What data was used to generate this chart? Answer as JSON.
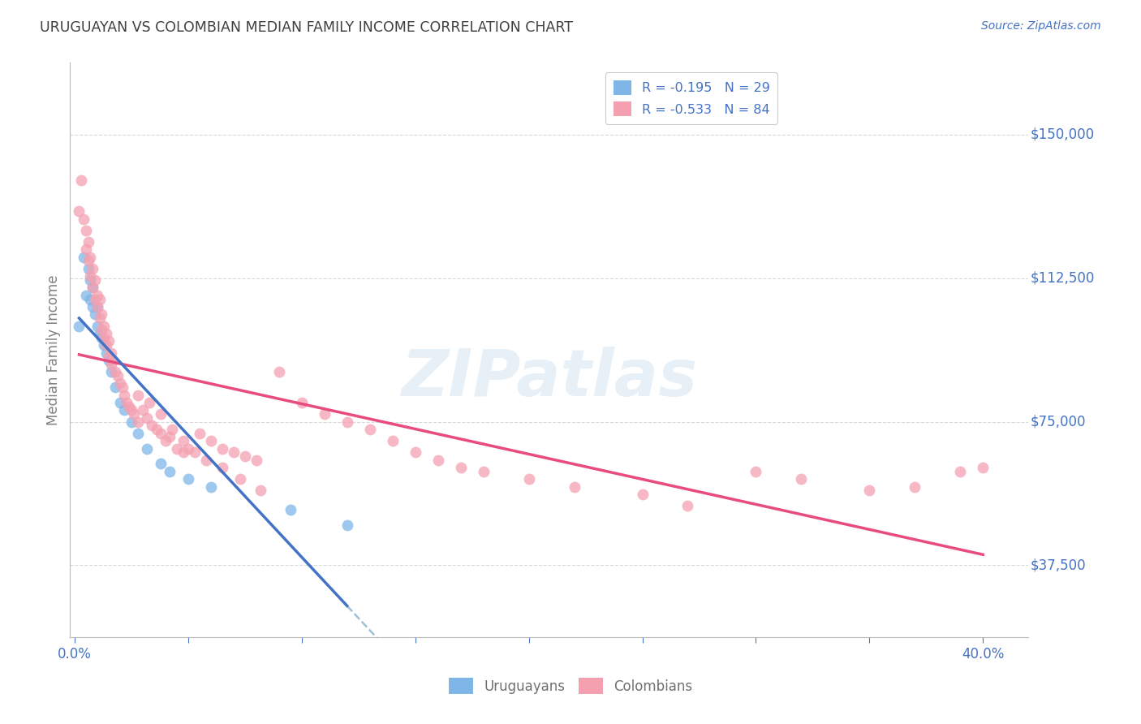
{
  "title": "URUGUAYAN VS COLOMBIAN MEDIAN FAMILY INCOME CORRELATION CHART",
  "source": "Source: ZipAtlas.com",
  "ylabel": "Median Family Income",
  "ytick_labels": [
    "$37,500",
    "$75,000",
    "$112,500",
    "$150,000"
  ],
  "ytick_values": [
    37500,
    75000,
    112500,
    150000
  ],
  "ylim": [
    18750,
    168750
  ],
  "xlim": [
    -0.002,
    0.42
  ],
  "watermark": "ZIPatlas",
  "legend_line1": "R = -0.195   N = 29",
  "legend_line2": "R = -0.533   N = 84",
  "legend_label1": "Uruguayans",
  "legend_label2": "Colombians",
  "color_uruguayan": "#7EB6E8",
  "color_colombian": "#F4A0B0",
  "color_trend_uruguayan": "#4472C4",
  "color_trend_colombian": "#E84C7D",
  "color_trend_dashed": "#A0C0D8",
  "color_axis_labels": "#4472C4",
  "color_title": "#404040",
  "background_color": "#FFFFFF",
  "grid_color": "#D8D8D8",
  "uruguayan_x": [
    0.002,
    0.004,
    0.005,
    0.006,
    0.007,
    0.007,
    0.008,
    0.008,
    0.009,
    0.01,
    0.01,
    0.011,
    0.012,
    0.013,
    0.014,
    0.015,
    0.016,
    0.018,
    0.02,
    0.022,
    0.025,
    0.028,
    0.032,
    0.038,
    0.042,
    0.05,
    0.06,
    0.095,
    0.12
  ],
  "uruguayan_y": [
    100000,
    118000,
    108000,
    115000,
    112000,
    107000,
    105000,
    110000,
    103000,
    100000,
    105000,
    98000,
    97000,
    95000,
    93000,
    91000,
    88000,
    84000,
    80000,
    78000,
    75000,
    72000,
    68000,
    64000,
    62000,
    60000,
    58000,
    52000,
    48000
  ],
  "colombian_x": [
    0.002,
    0.003,
    0.004,
    0.005,
    0.005,
    0.006,
    0.006,
    0.007,
    0.007,
    0.008,
    0.008,
    0.009,
    0.009,
    0.01,
    0.01,
    0.011,
    0.011,
    0.012,
    0.012,
    0.013,
    0.013,
    0.014,
    0.014,
    0.015,
    0.015,
    0.016,
    0.016,
    0.017,
    0.018,
    0.019,
    0.02,
    0.021,
    0.022,
    0.023,
    0.024,
    0.025,
    0.026,
    0.028,
    0.03,
    0.032,
    0.034,
    0.036,
    0.038,
    0.04,
    0.042,
    0.045,
    0.048,
    0.05,
    0.055,
    0.06,
    0.065,
    0.07,
    0.075,
    0.08,
    0.09,
    0.1,
    0.11,
    0.12,
    0.13,
    0.14,
    0.15,
    0.16,
    0.17,
    0.18,
    0.2,
    0.22,
    0.25,
    0.27,
    0.3,
    0.32,
    0.35,
    0.37,
    0.39,
    0.4,
    0.028,
    0.033,
    0.038,
    0.043,
    0.048,
    0.053,
    0.058,
    0.065,
    0.073,
    0.082
  ],
  "colombian_y": [
    130000,
    138000,
    128000,
    125000,
    120000,
    122000,
    117000,
    118000,
    113000,
    115000,
    110000,
    112000,
    107000,
    108000,
    105000,
    107000,
    102000,
    103000,
    99000,
    100000,
    97000,
    98000,
    95000,
    96000,
    92000,
    93000,
    90000,
    91000,
    88000,
    87000,
    85000,
    84000,
    82000,
    80000,
    79000,
    78000,
    77000,
    75000,
    78000,
    76000,
    74000,
    73000,
    72000,
    70000,
    71000,
    68000,
    67000,
    68000,
    72000,
    70000,
    68000,
    67000,
    66000,
    65000,
    88000,
    80000,
    77000,
    75000,
    73000,
    70000,
    67000,
    65000,
    63000,
    62000,
    60000,
    58000,
    56000,
    53000,
    62000,
    60000,
    57000,
    58000,
    62000,
    63000,
    82000,
    80000,
    77000,
    73000,
    70000,
    67000,
    65000,
    63000,
    60000,
    57000
  ]
}
